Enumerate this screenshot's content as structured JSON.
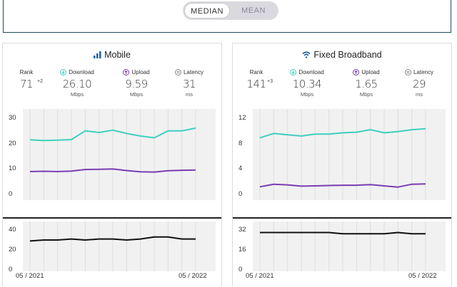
{
  "toggle": {
    "median_label": "MEDIAN",
    "mean_label": "MEAN",
    "selected": "MEDIAN"
  },
  "panels": [
    {
      "title": "Mobile",
      "icon": "signal-bars-icon",
      "stats": {
        "rank": {
          "label": "Rank",
          "value": "71",
          "delta": "+2"
        },
        "download": {
          "label": "Download",
          "value": "26.10",
          "unit": "Mbps"
        },
        "upload": {
          "label": "Upload",
          "value": "9.59",
          "unit": "Mbps"
        },
        "latency": {
          "label": "Latency",
          "value": "31",
          "unit": "ms"
        }
      },
      "speed_chart": {
        "yticks": [
          "30",
          "20",
          "10",
          "0"
        ],
        "ymax": 30,
        "download": [
          21.5,
          21.2,
          21.4,
          21.6,
          25.0,
          24.4,
          25.3,
          24.0,
          23.0,
          22.3,
          25.0,
          25.0,
          26.1
        ],
        "upload": [
          9.0,
          9.1,
          9.0,
          9.2,
          9.8,
          9.9,
          10.0,
          9.4,
          8.9,
          8.8,
          9.3,
          9.5,
          9.59
        ]
      },
      "latency_chart": {
        "yticks": [
          "40",
          "20",
          "0"
        ],
        "ymax": 40,
        "values": [
          29,
          30,
          30,
          31,
          30,
          31,
          31,
          30,
          31,
          33,
          33,
          31,
          31
        ]
      },
      "x_start": "05 / 2021",
      "x_end": "05 / 2022"
    },
    {
      "title": "Fixed Broadband",
      "icon": "wifi-icon",
      "stats": {
        "rank": {
          "label": "Rank",
          "value": "141",
          "delta": "+3"
        },
        "download": {
          "label": "Download",
          "value": "10.34",
          "unit": "Mbps"
        },
        "upload": {
          "label": "Upload",
          "value": "1.65",
          "unit": "Mbps"
        },
        "latency": {
          "label": "Latency",
          "value": "29",
          "unit": "ms"
        }
      },
      "speed_chart": {
        "yticks": [
          "12",
          "8",
          "4",
          "0"
        ],
        "ymax": 12,
        "download": [
          8.9,
          9.6,
          9.4,
          9.2,
          9.5,
          9.5,
          9.7,
          9.8,
          10.2,
          9.7,
          9.9,
          10.2,
          10.34
        ],
        "upload": [
          1.2,
          1.6,
          1.5,
          1.3,
          1.35,
          1.4,
          1.45,
          1.45,
          1.55,
          1.35,
          1.15,
          1.6,
          1.65
        ]
      },
      "latency_chart": {
        "yticks": [
          "32",
          "16",
          "0"
        ],
        "ymax": 32,
        "values": [
          30,
          30,
          30,
          30,
          30,
          30,
          29,
          29,
          29,
          29,
          30,
          29,
          29
        ]
      },
      "x_start": "05 / 2021",
      "x_end": "05 / 2022"
    }
  ],
  "colors": {
    "download": "#3fcfc0",
    "upload": "#7a3db0",
    "latency": "#111111",
    "chart_bg": "#f1f1f1",
    "frame": "#1f4f5c"
  },
  "status_icons": {
    "download": "download-arrow-icon",
    "upload": "upload-arrow-icon",
    "latency": "latency-icon"
  }
}
